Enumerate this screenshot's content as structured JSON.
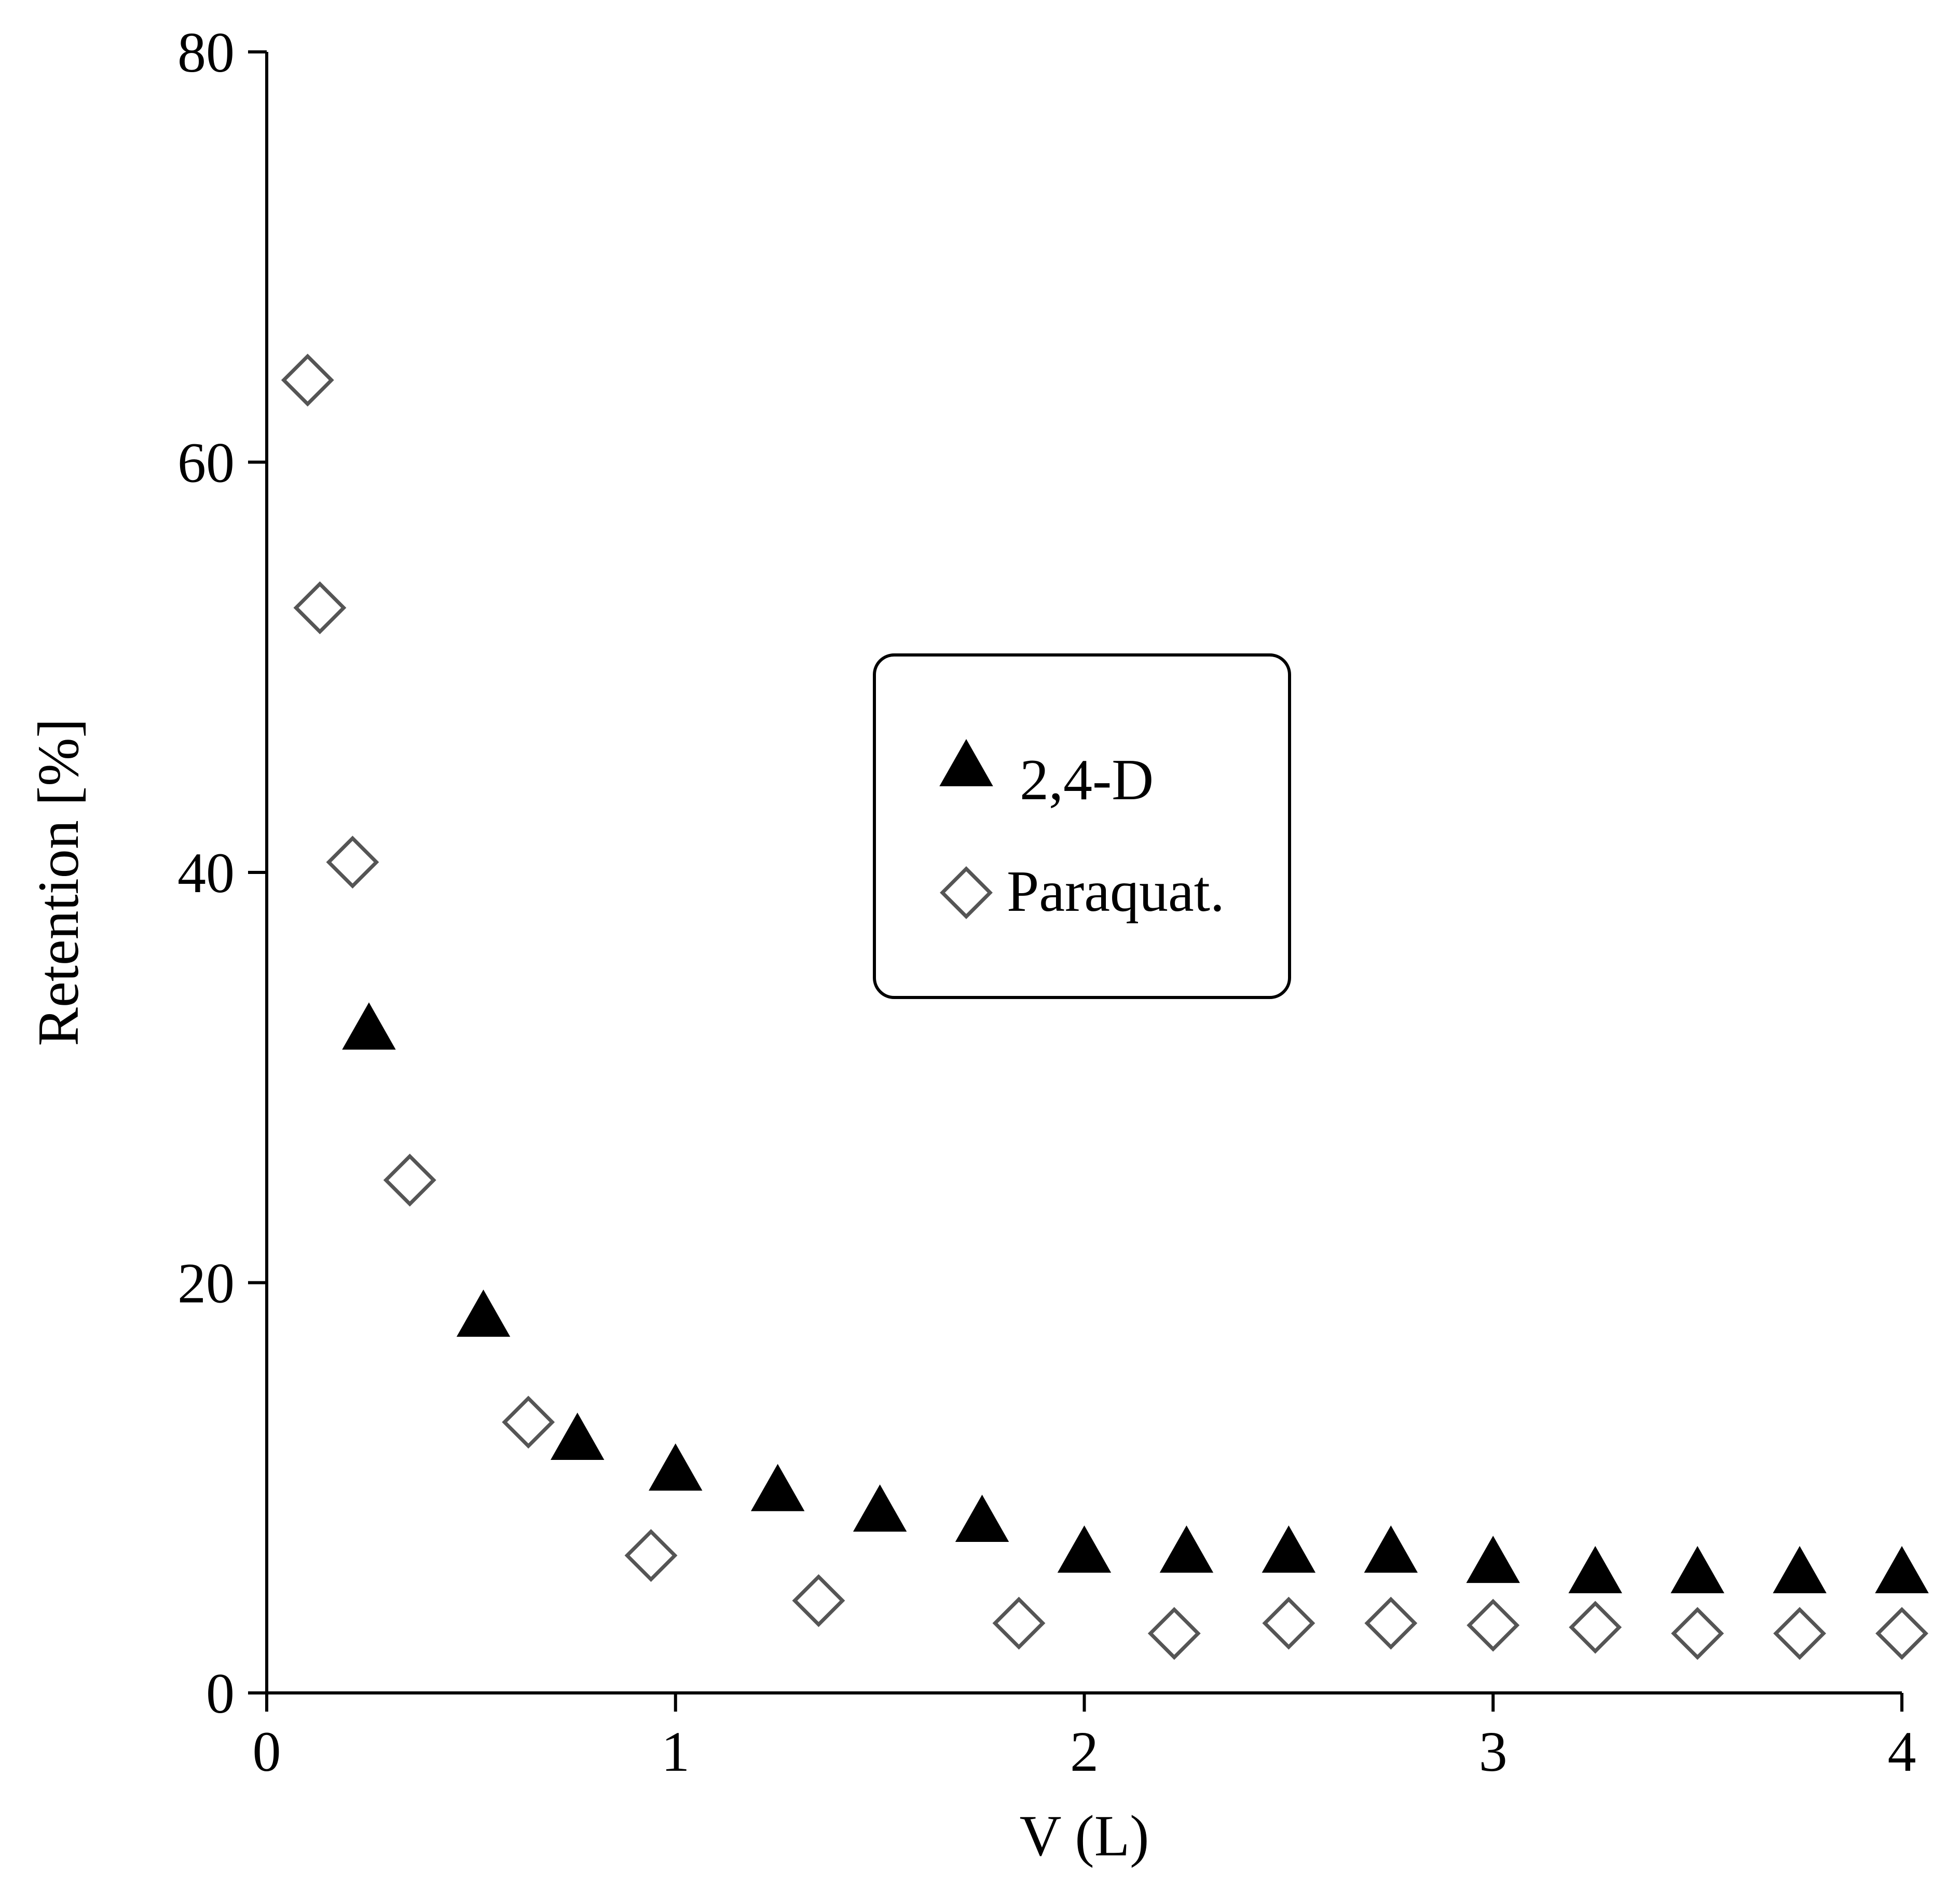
{
  "chart_data": {
    "type": "scatter",
    "title": "",
    "xlabel": "V (L)",
    "ylabel": "Retention [%]",
    "xlim": [
      0,
      4
    ],
    "ylim": [
      0,
      80
    ],
    "xticks": [
      "0",
      "1",
      "2",
      "3",
      "4"
    ],
    "yticks": [
      "0",
      "20",
      "40",
      "60",
      "80"
    ],
    "grid": false,
    "legend_position": "center-right",
    "series": [
      {
        "name": "2,4-D",
        "marker": "filled-triangle",
        "color": "#000000",
        "x": [
          0.25,
          0.53,
          0.76,
          1.0,
          1.25,
          1.5,
          1.75,
          2.0,
          2.25,
          2.5,
          2.75,
          3.0,
          3.25,
          3.5,
          3.75,
          4.0
        ],
        "y": [
          32.5,
          18.5,
          12.5,
          11.0,
          10.0,
          9.0,
          8.5,
          7.0,
          7.0,
          7.0,
          7.0,
          6.5,
          6.0,
          6.0,
          6.0,
          6.0
        ]
      },
      {
        "name": "Paraquat.",
        "marker": "open-diamond",
        "color": "#555555",
        "x": [
          0.1,
          0.13,
          0.21,
          0.35,
          0.64,
          0.94,
          1.35,
          1.84,
          2.22,
          2.5,
          2.75,
          3.0,
          3.25,
          3.5,
          3.75,
          4.0
        ],
        "y": [
          64.0,
          52.9,
          40.5,
          25.0,
          13.2,
          6.7,
          4.5,
          3.4,
          2.9,
          3.4,
          3.4,
          3.3,
          3.2,
          2.9,
          2.9,
          2.9
        ]
      }
    ]
  }
}
